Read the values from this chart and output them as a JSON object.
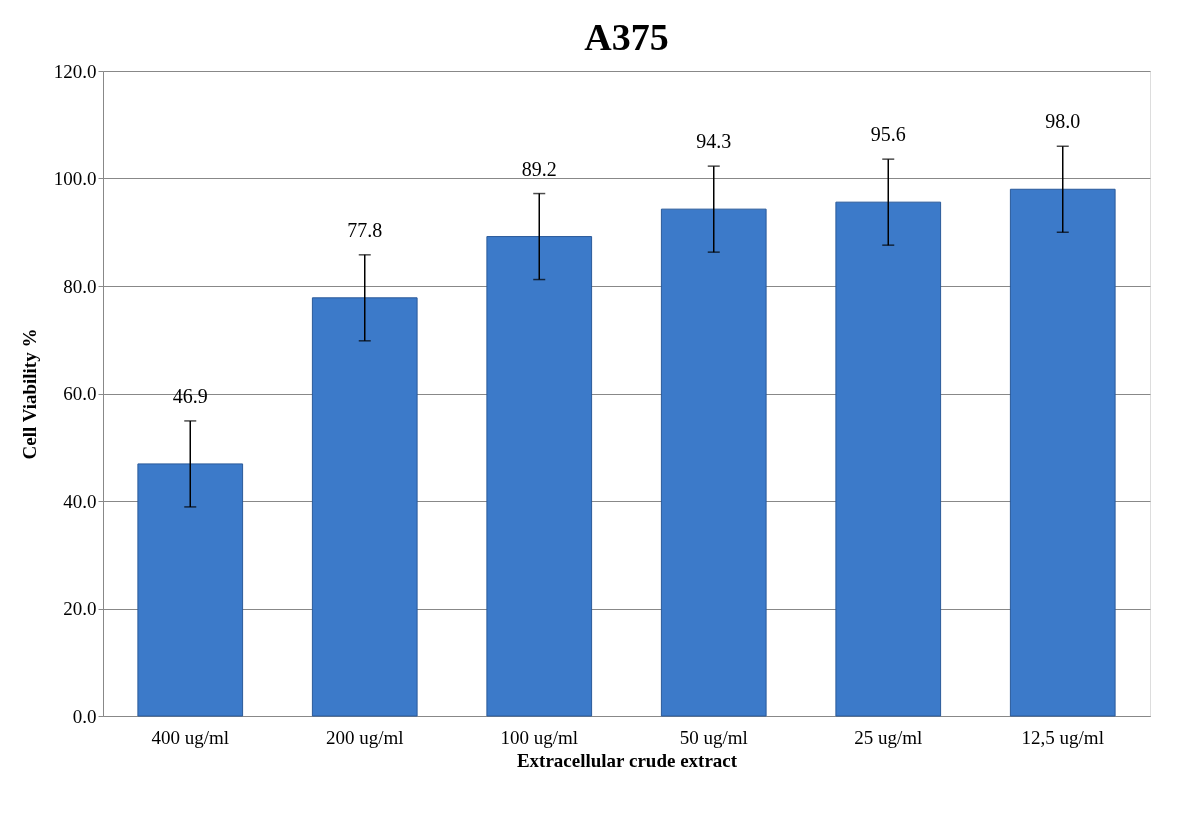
{
  "chart_data": {
    "type": "bar",
    "title": "A375",
    "xlabel": "Extracellular crude extract",
    "ylabel": "Cell Viability %",
    "categories": [
      "400 ug/ml",
      "200 ug/ml",
      "100 ug/ml",
      "50 ug/ml",
      "25 ug/ml",
      "12,5 ug/ml"
    ],
    "values": [
      46.9,
      77.8,
      89.2,
      94.3,
      95.6,
      98.0
    ],
    "errors": [
      8,
      8,
      8,
      8,
      8,
      8
    ],
    "value_labels": [
      "46.9",
      "77.8",
      "89.2",
      "94.3",
      "95.6",
      "98.0"
    ],
    "color": "#3c7ac9",
    "ylim": [
      0,
      120
    ],
    "yticks": [
      {
        "value": 0,
        "label": "0.0"
      },
      {
        "value": 20,
        "label": "20.0"
      },
      {
        "value": 40,
        "label": "40.0"
      },
      {
        "value": 60,
        "label": "60.0"
      },
      {
        "value": 80,
        "label": "80.0"
      },
      {
        "value": 100,
        "label": "100.0"
      },
      {
        "value": 120,
        "label": "120.0"
      }
    ],
    "grid": "y"
  }
}
